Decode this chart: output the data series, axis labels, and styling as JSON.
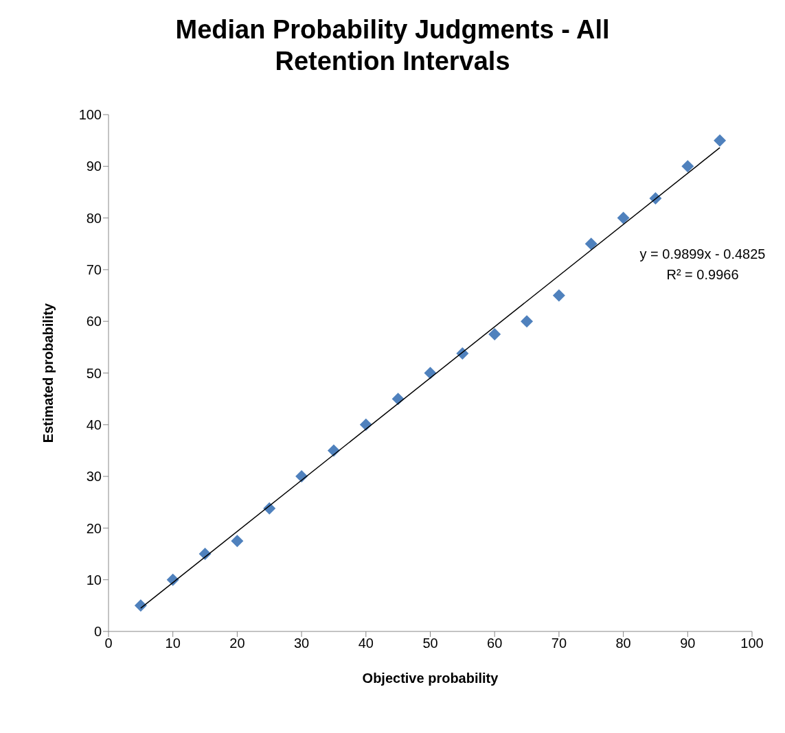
{
  "chart_data": {
    "type": "scatter",
    "title": "Median Probability Judgments - All Retention Intervals",
    "xlabel": "Objective probability",
    "ylabel": "Estimated probability",
    "x": [
      5,
      10,
      15,
      20,
      25,
      30,
      35,
      40,
      45,
      50,
      55,
      60,
      65,
      70,
      75,
      80,
      85,
      90,
      95
    ],
    "series": [
      {
        "color": "#4f81bd",
        "marker": "diamond",
        "values": [
          5,
          10,
          15,
          17.5,
          23.8,
          30,
          35,
          40,
          45,
          50,
          53.8,
          57.5,
          60,
          65,
          75,
          80,
          83.8,
          90,
          95
        ]
      },
      {
        "type": "line",
        "color": "#000000",
        "marker": "none",
        "x": [
          5,
          95
        ],
        "values": [
          4.5,
          93.6
        ]
      }
    ],
    "xlim": [
      0,
      100
    ],
    "ylim": [
      0,
      100
    ],
    "xticks": [
      0,
      10,
      20,
      30,
      40,
      50,
      60,
      70,
      80,
      90,
      100
    ],
    "yticks": [
      0,
      10,
      20,
      30,
      40,
      50,
      60,
      70,
      80,
      90,
      100
    ],
    "annotations": [
      "y = 0.9899x - 0.4825",
      "R² = 0.9966"
    ],
    "grid": false,
    "legend": false
  }
}
